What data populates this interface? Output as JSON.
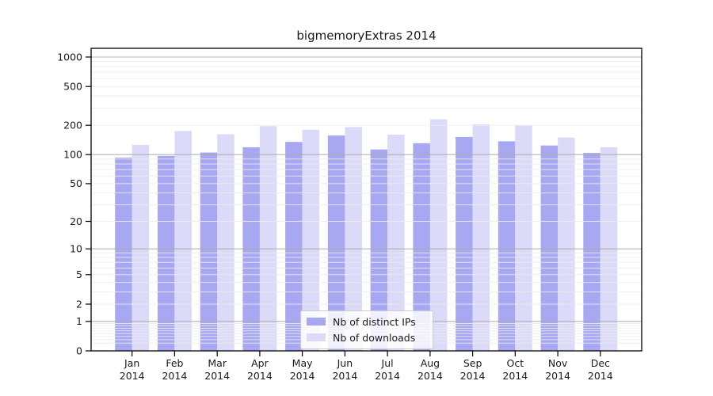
{
  "chart_data": {
    "type": "bar",
    "title": "bigmemoryExtras 2014",
    "categories": [
      "Jan",
      "Feb",
      "Mar",
      "Apr",
      "May",
      "Jun",
      "Jul",
      "Aug",
      "Sep",
      "Oct",
      "Nov",
      "Dec"
    ],
    "year_label": "2014",
    "series": [
      {
        "name": "Nb of distinct IPs",
        "color": "#a7a7f2",
        "values": [
          93,
          97,
          105,
          119,
          135,
          157,
          113,
          131,
          152,
          137,
          124,
          104
        ]
      },
      {
        "name": "Nb of downloads",
        "color": "#dbdbf9",
        "values": [
          126,
          175,
          162,
          196,
          180,
          192,
          160,
          230,
          205,
          200,
          150,
          119
        ]
      }
    ],
    "xlabel": "",
    "ylabel": "",
    "y_axis": {
      "scale": "log1p",
      "ticks": [
        0,
        1,
        2,
        5,
        10,
        20,
        50,
        100,
        200,
        500,
        1000
      ],
      "range": [
        0,
        1240
      ]
    },
    "grid": {
      "major_values": [
        1,
        10,
        100,
        1000
      ],
      "minor_on": true,
      "major_color": "#ababab",
      "minor_color": "#ececec"
    },
    "legend_position": "bottom-center",
    "axis_color": "#000000",
    "text_color": "#1a1a1a"
  }
}
